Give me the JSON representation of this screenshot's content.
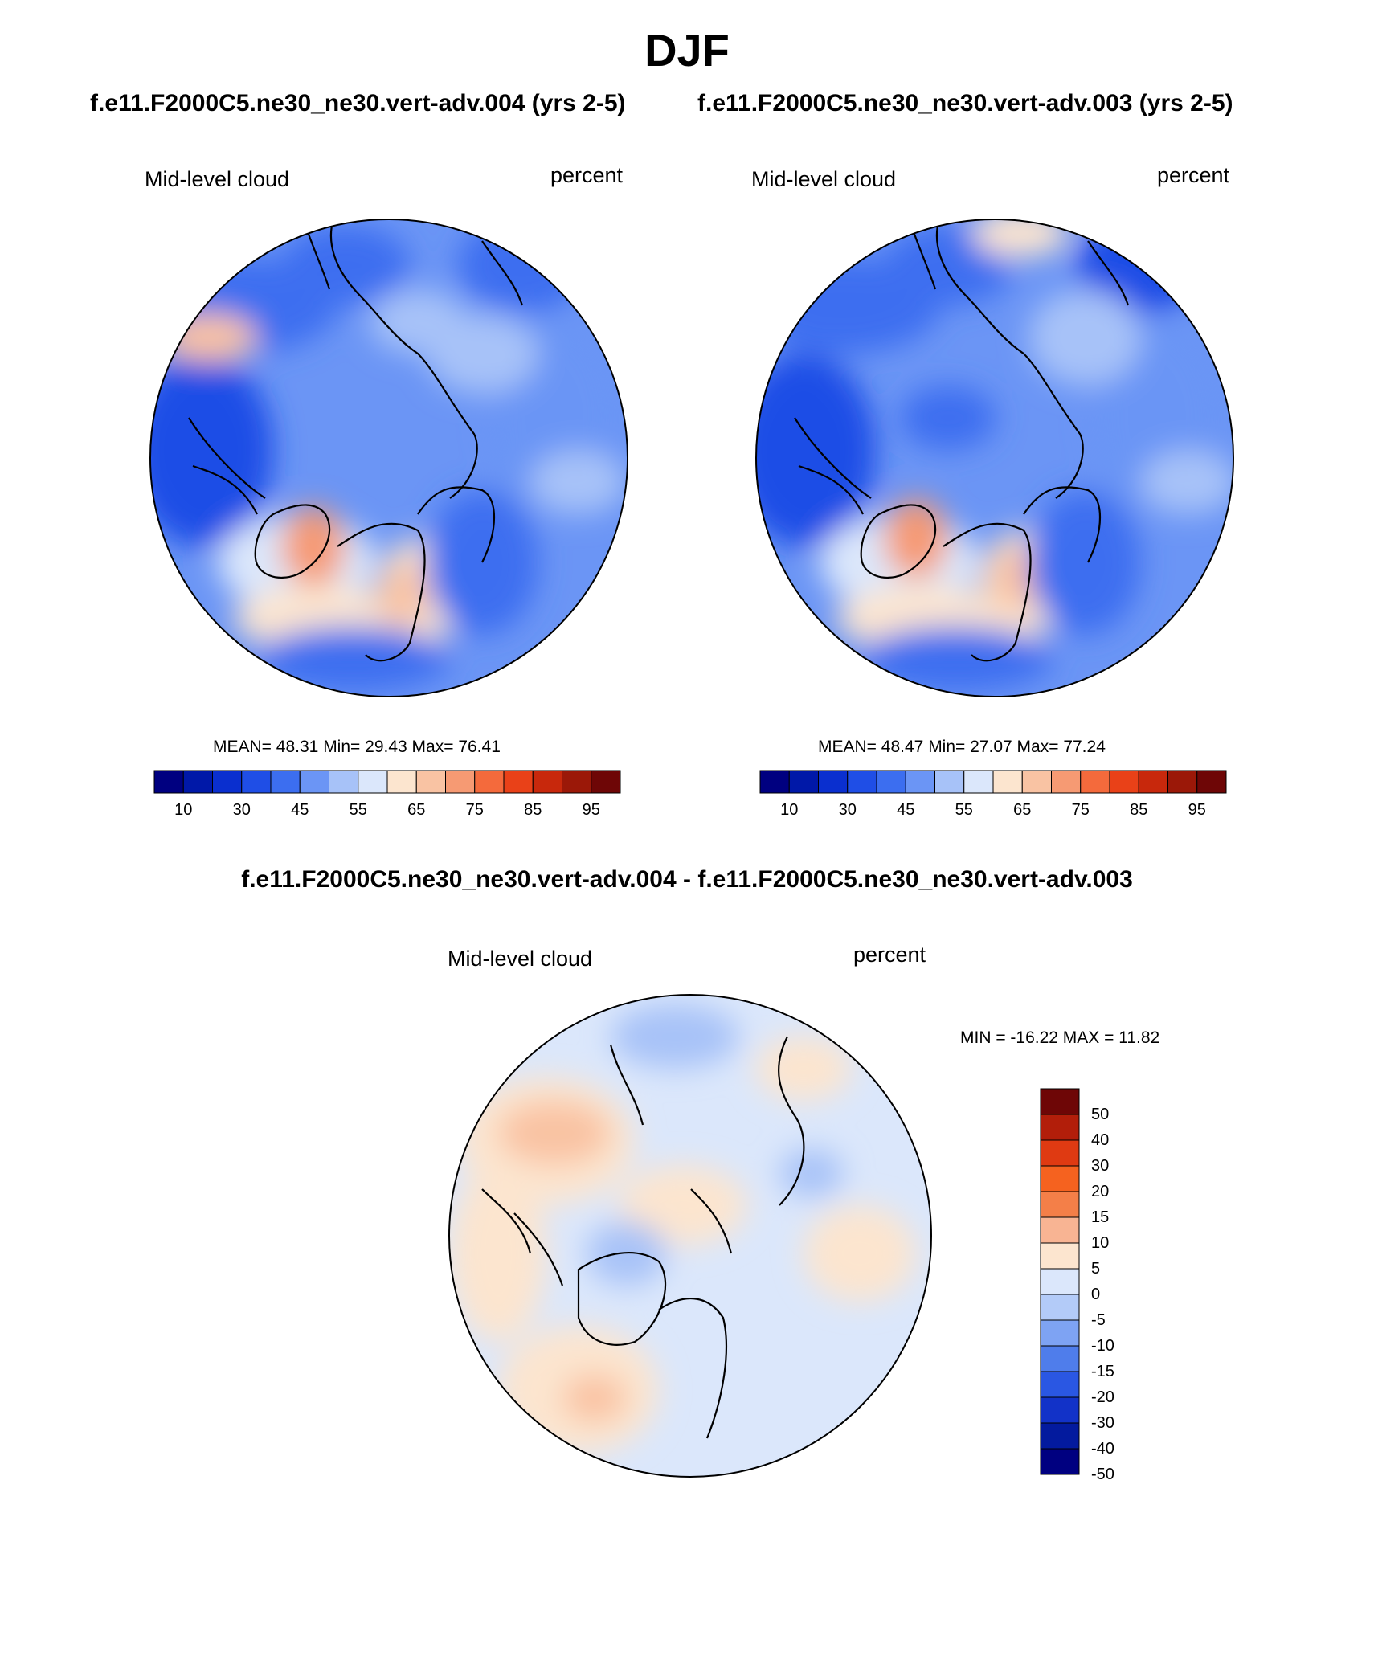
{
  "title": "DJF",
  "panels": [
    {
      "case_title": "f.e11.F2000C5.ne30_ne30.vert-adv.004 (yrs 2-5)",
      "variable": "Mid-level cloud",
      "units": "percent",
      "stats": {
        "mean_label": "MEAN=",
        "mean": "48.31",
        "min_label": "Min=",
        "min": "29.43",
        "max_label": "Max=",
        "max": "76.41"
      }
    },
    {
      "case_title": "f.e11.F2000C5.ne30_ne30.vert-adv.003 (yrs 2-5)",
      "variable": "Mid-level cloud",
      "units": "percent",
      "stats": {
        "mean_label": "MEAN=",
        "mean": "48.47",
        "min_label": "Min=",
        "min": "27.07",
        "max_label": "Max=",
        "max": "77.24"
      }
    }
  ],
  "colorbar": {
    "colors": [
      "#000080",
      "#0018a8",
      "#0a2fcf",
      "#1f4ee6",
      "#3c6ef0",
      "#6b95f5",
      "#a7c2f8",
      "#dbe7fb",
      "#fce5cf",
      "#f9c3a3",
      "#f69a73",
      "#f46a3c",
      "#e94118",
      "#c8280c",
      "#9b1808",
      "#6e0606"
    ],
    "tick_labels": [
      "10",
      "30",
      "45",
      "55",
      "65",
      "75",
      "85",
      "95"
    ]
  },
  "difference": {
    "title": "f.e11.F2000C5.ne30_ne30.vert-adv.004 - f.e11.F2000C5.ne30_ne30.vert-adv.003",
    "variable": "Mid-level cloud",
    "units": "percent",
    "minmax": "MIN = -16.22 MAX =  11.82",
    "colorbar": {
      "colors": [
        "#6e0606",
        "#b21e0a",
        "#df3a12",
        "#f5621f",
        "#f47f48",
        "#f8b493",
        "#fce5cf",
        "#dbe7fb",
        "#b3cbf8",
        "#7ea3f3",
        "#4f7deb",
        "#2a57e3",
        "#1232c8",
        "#031a9e",
        "#000080"
      ],
      "labels": [
        "50",
        "40",
        "30",
        "20",
        "15",
        "10",
        "5",
        "0",
        "-5",
        "-10",
        "-15",
        "-20",
        "-30",
        "-40",
        "-50"
      ]
    }
  }
}
